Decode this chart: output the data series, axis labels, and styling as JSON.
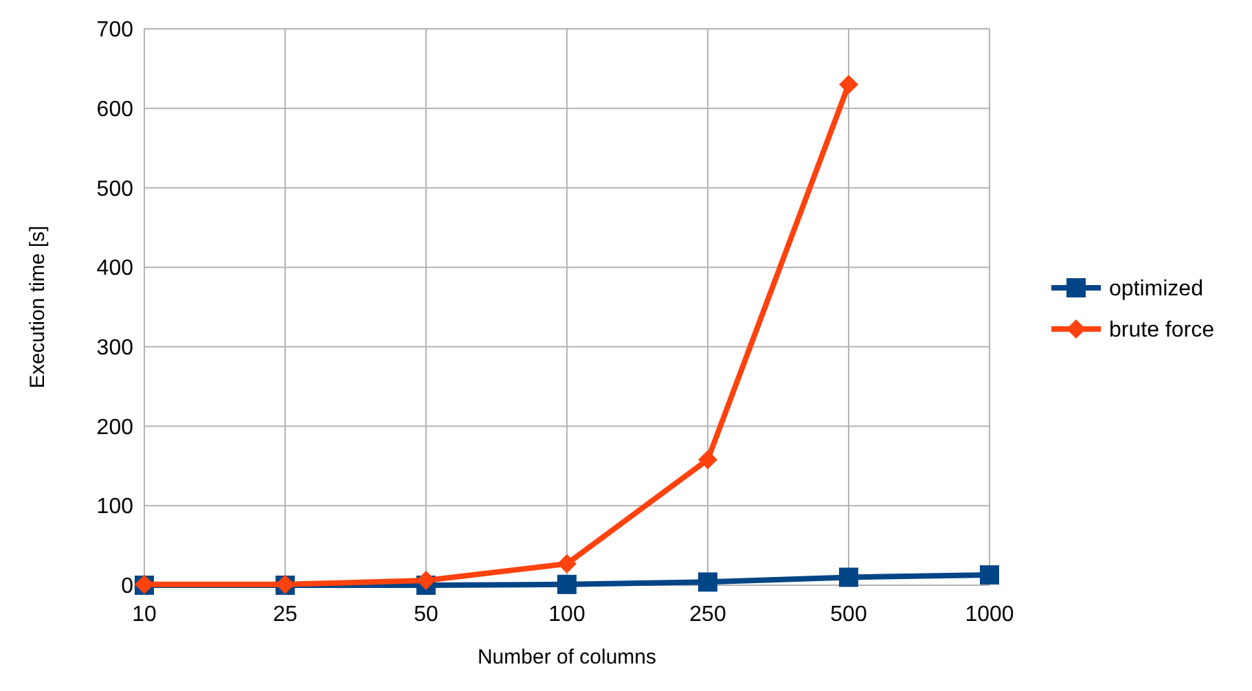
{
  "chart_data": {
    "type": "line",
    "xlabel": "Number of columns",
    "ylabel": "Execution time [s]",
    "categories": [
      "10",
      "25",
      "50",
      "100",
      "250",
      "500",
      "1000"
    ],
    "series": [
      {
        "name": "optimized",
        "color": "#004586",
        "values": [
          0,
          0,
          0,
          1,
          4,
          10,
          13
        ],
        "marker": "square"
      },
      {
        "name": "brute force",
        "color": "#ff420e",
        "values": [
          1,
          1,
          6,
          27,
          158,
          630,
          null
        ],
        "marker": "diamond"
      }
    ],
    "ylim": [
      0,
      700
    ],
    "yticks": [
      0,
      100,
      200,
      300,
      400,
      500,
      600,
      700
    ],
    "grid": true,
    "legend": "right"
  }
}
